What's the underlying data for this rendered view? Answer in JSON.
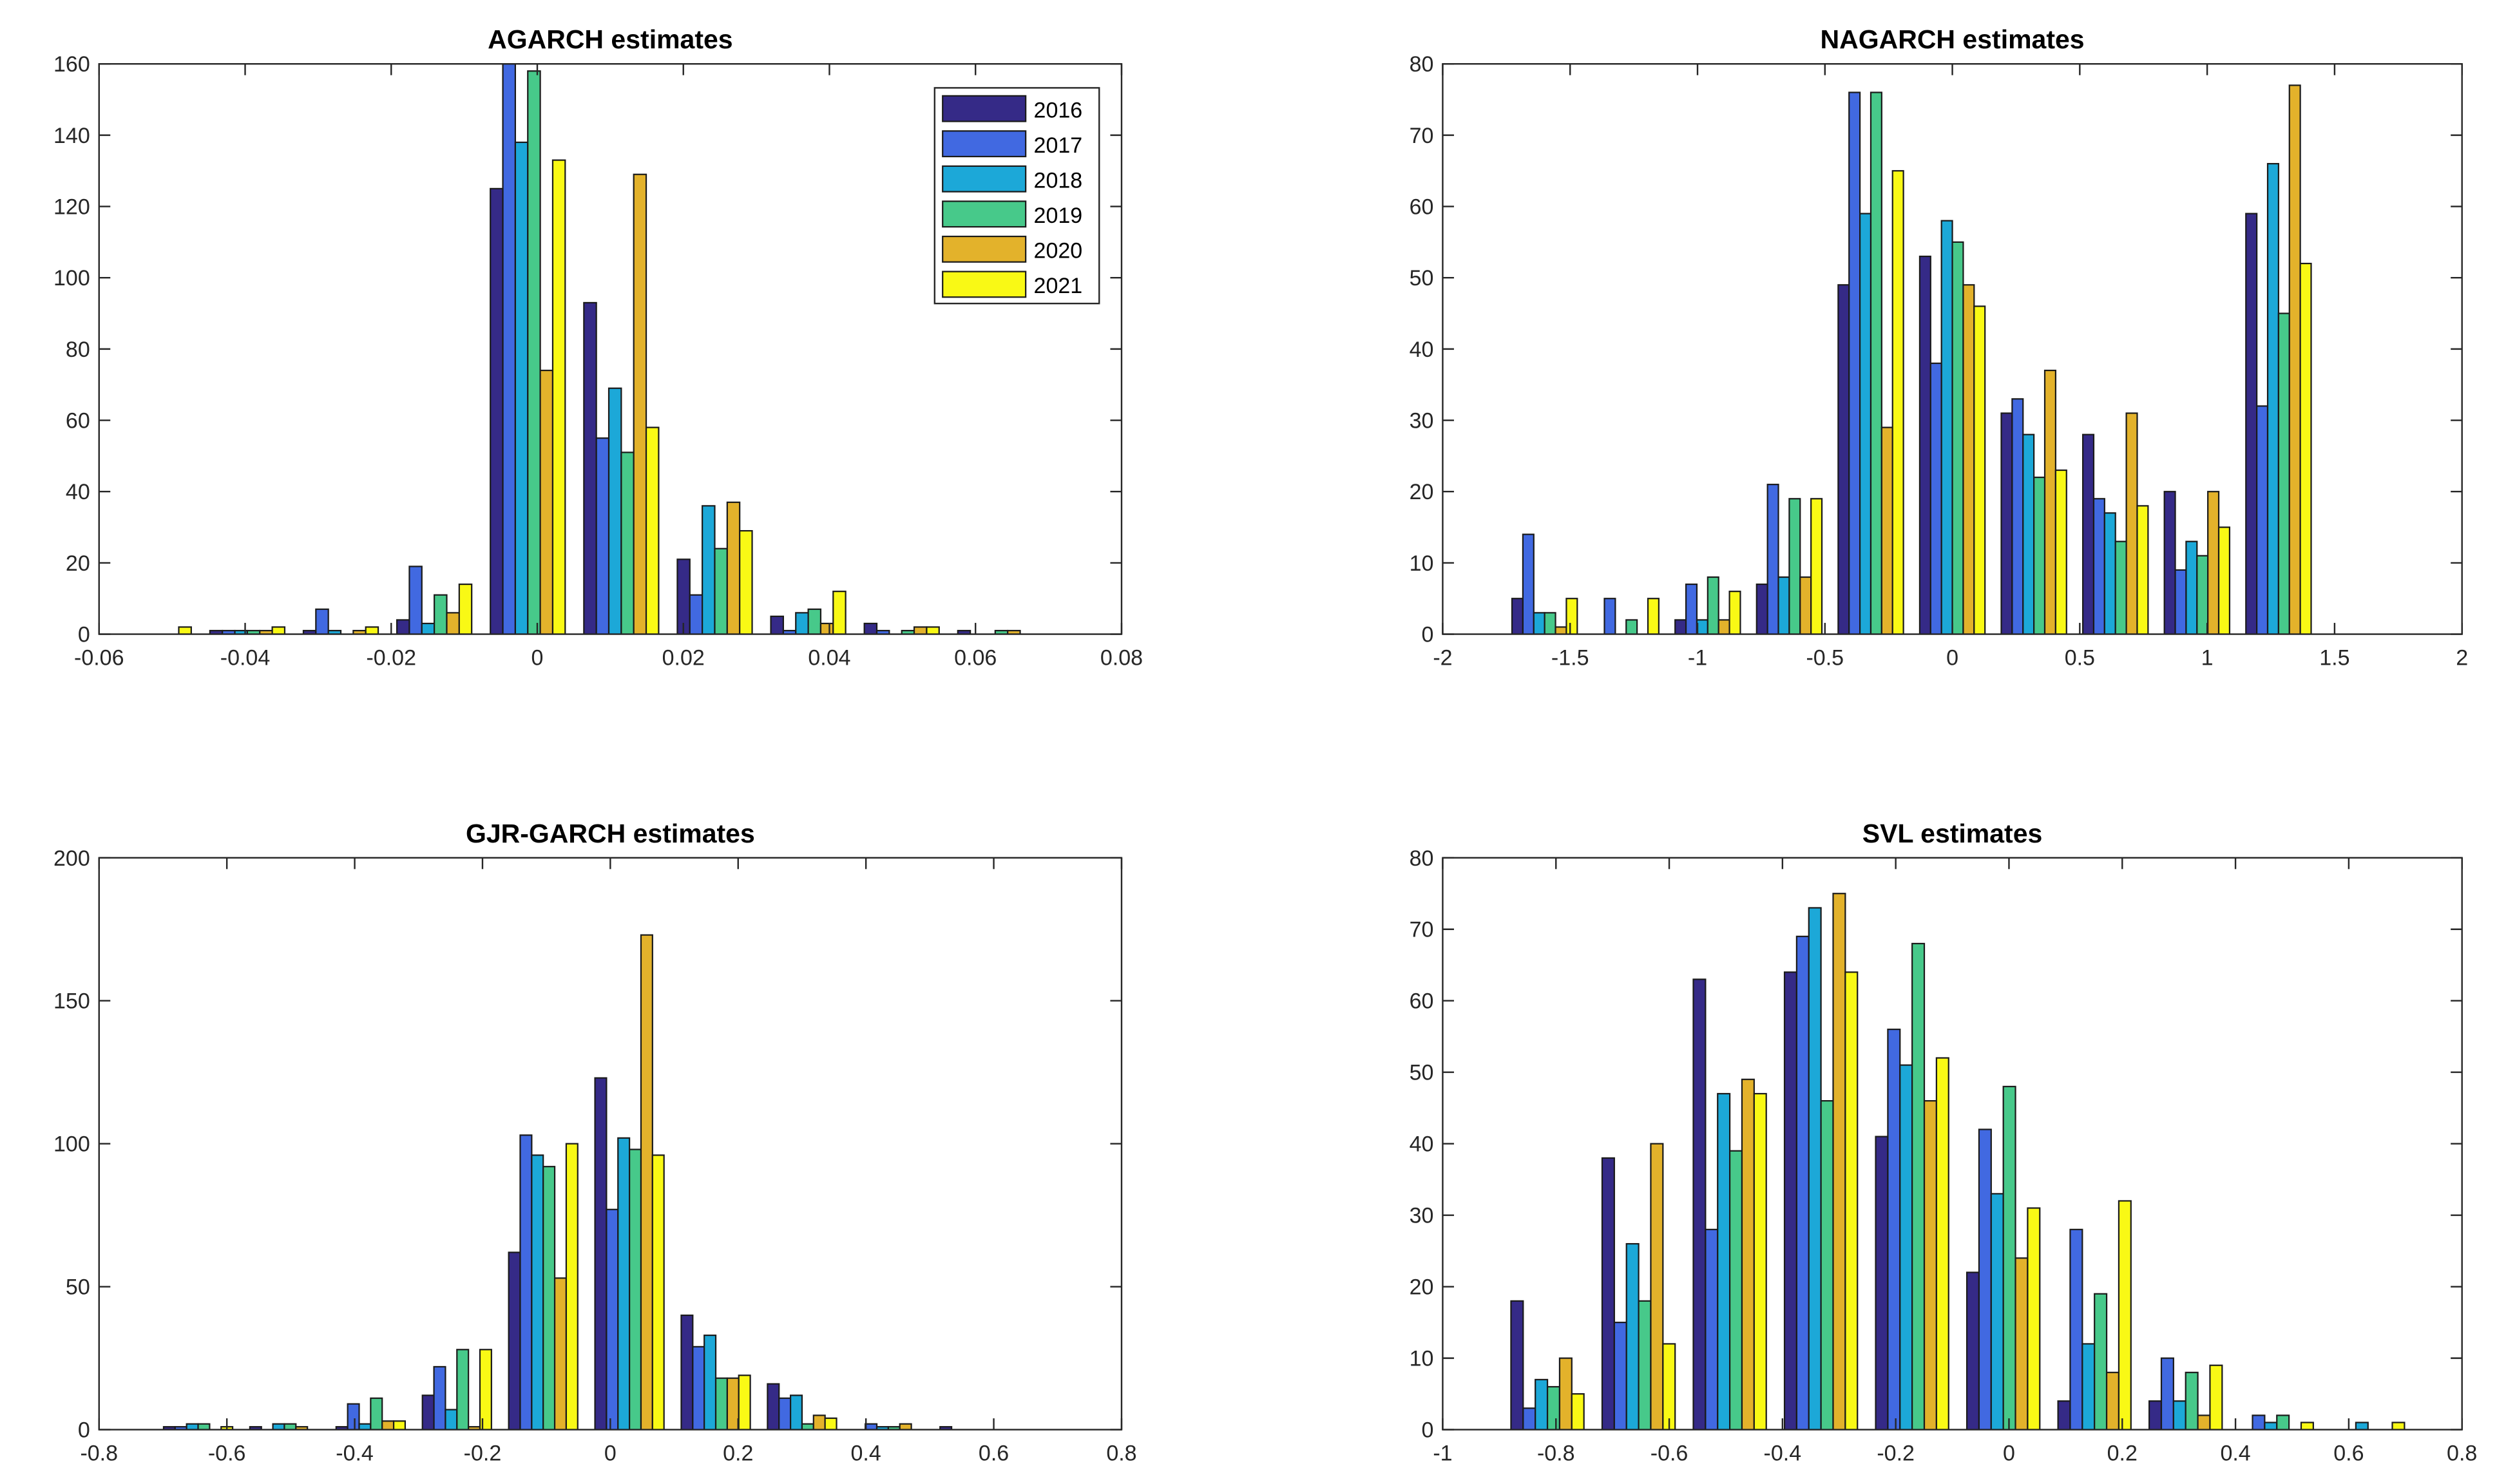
{
  "colors": {
    "2016": "#352a87",
    "2017": "#4169e1",
    "2018": "#1ca8d8",
    "2019": "#47c98a",
    "2020": "#e3b22b",
    "2021": "#f9f915"
  },
  "chart_data": [
    {
      "type": "bar",
      "title": "AGARCH estimates",
      "xlim": [
        -0.06,
        0.08
      ],
      "ylim": [
        0,
        160
      ],
      "xticks": [
        "-0.06",
        "-0.04",
        "-0.02",
        "0",
        "0.02",
        "0.04",
        "0.06",
        "0.08"
      ],
      "xtick_values": [
        -0.06,
        -0.04,
        -0.02,
        0,
        0.02,
        0.04,
        0.06,
        0.08
      ],
      "yticks": [
        "0",
        "20",
        "40",
        "60",
        "80",
        "100",
        "120",
        "140",
        "160"
      ],
      "ytick_values": [
        0,
        20,
        40,
        60,
        80,
        100,
        120,
        140,
        160
      ],
      "legend": {
        "position": "top-right",
        "entries": [
          "2016",
          "2017",
          "2018",
          "2019",
          "2020",
          "2021"
        ]
      },
      "bin_start": -0.0525,
      "bin_width": 0.0128,
      "series": [
        {
          "name": "2016",
          "values": [
            0,
            1,
            1,
            4,
            125,
            93,
            21,
            5,
            3,
            1,
            0
          ]
        },
        {
          "name": "2017",
          "values": [
            0,
            1,
            7,
            19,
            160,
            55,
            11,
            1,
            1,
            0,
            0
          ]
        },
        {
          "name": "2018",
          "values": [
            0,
            1,
            1,
            3,
            138,
            69,
            36,
            6,
            0,
            0,
            0
          ]
        },
        {
          "name": "2019",
          "values": [
            0,
            1,
            0,
            11,
            158,
            51,
            24,
            7,
            1,
            1,
            0
          ]
        },
        {
          "name": "2020",
          "values": [
            0,
            1,
            1,
            6,
            74,
            129,
            37,
            3,
            2,
            1,
            0
          ]
        },
        {
          "name": "2021",
          "values": [
            2,
            2,
            2,
            14,
            133,
            58,
            29,
            12,
            2,
            0,
            0
          ]
        }
      ]
    },
    {
      "type": "bar",
      "title": "NAGARCH estimates",
      "xlim": [
        -2,
        2
      ],
      "ylim": [
        0,
        80
      ],
      "xticks": [
        "-2",
        "-1.5",
        "-1",
        "-0.5",
        "0",
        "0.5",
        "1",
        "1.5",
        "2"
      ],
      "xtick_values": [
        -2,
        -1.5,
        -1,
        -0.5,
        0,
        0.5,
        1,
        1.5,
        2
      ],
      "yticks": [
        "0",
        "10",
        "20",
        "30",
        "40",
        "50",
        "60",
        "70",
        "80"
      ],
      "ytick_values": [
        0,
        10,
        20,
        30,
        40,
        50,
        60,
        70,
        80
      ],
      "bin_start": -1.6,
      "bin_width": 0.32,
      "series": [
        {
          "name": "2016",
          "values": [
            5,
            0,
            2,
            7,
            49,
            53,
            31,
            28,
            20,
            59
          ]
        },
        {
          "name": "2017",
          "values": [
            14,
            5,
            7,
            21,
            76,
            38,
            33,
            19,
            9,
            32
          ]
        },
        {
          "name": "2018",
          "values": [
            3,
            0,
            2,
            8,
            59,
            58,
            28,
            17,
            13,
            66
          ]
        },
        {
          "name": "2019",
          "values": [
            3,
            2,
            8,
            19,
            76,
            55,
            22,
            13,
            11,
            45
          ]
        },
        {
          "name": "2020",
          "values": [
            1,
            0,
            2,
            8,
            29,
            49,
            37,
            31,
            20,
            77
          ]
        },
        {
          "name": "2021",
          "values": [
            5,
            5,
            6,
            19,
            65,
            46,
            23,
            18,
            15,
            52
          ]
        }
      ]
    },
    {
      "type": "bar",
      "title": "GJR-GARCH estimates",
      "xlim": [
        -0.8,
        0.8
      ],
      "ylim": [
        0,
        200
      ],
      "xticks": [
        "-0.8",
        "-0.6",
        "-0.4",
        "-0.2",
        "0",
        "0.2",
        "0.4",
        "0.6",
        "0.8"
      ],
      "xtick_values": [
        -0.8,
        -0.6,
        -0.4,
        -0.2,
        0,
        0.2,
        0.4,
        0.6,
        0.8
      ],
      "yticks": [
        "0",
        "50",
        "100",
        "150",
        "200"
      ],
      "ytick_values": [
        0,
        50,
        100,
        150,
        200
      ],
      "bin_start": -0.645,
      "bin_width": 0.135,
      "series": [
        {
          "name": "2016",
          "values": [
            1,
            1,
            1,
            12,
            62,
            123,
            40,
            16,
            0,
            1
          ]
        },
        {
          "name": "2017",
          "values": [
            1,
            0,
            9,
            22,
            103,
            77,
            29,
            11,
            2,
            0
          ]
        },
        {
          "name": "2018",
          "values": [
            2,
            2,
            2,
            7,
            96,
            102,
            33,
            12,
            1,
            0
          ]
        },
        {
          "name": "2019",
          "values": [
            2,
            2,
            11,
            28,
            92,
            98,
            18,
            2,
            1,
            0
          ]
        },
        {
          "name": "2020",
          "values": [
            0,
            1,
            3,
            1,
            53,
            173,
            18,
            5,
            2,
            0
          ]
        },
        {
          "name": "2021",
          "values": [
            1,
            0,
            3,
            28,
            100,
            96,
            19,
            4,
            0,
            0
          ]
        }
      ]
    },
    {
      "type": "bar",
      "title": "SVL estimates",
      "xlim": [
        -1,
        0.8
      ],
      "ylim": [
        0,
        80
      ],
      "xticks": [
        "-1",
        "-0.8",
        "-0.6",
        "-0.4",
        "-0.2",
        "0",
        "0.2",
        "0.4",
        "0.6",
        "0.8"
      ],
      "xtick_values": [
        -1,
        -0.8,
        -0.6,
        -0.4,
        -0.2,
        0,
        0.2,
        0.4,
        0.6,
        0.8
      ],
      "yticks": [
        "0",
        "10",
        "20",
        "30",
        "40",
        "50",
        "60",
        "70",
        "80"
      ],
      "ytick_values": [
        0,
        10,
        20,
        30,
        40,
        50,
        60,
        70,
        80
      ],
      "bin_start": -0.815,
      "bin_width": 0.161,
      "series": [
        {
          "name": "2016",
          "values": [
            18,
            38,
            63,
            64,
            41,
            22,
            4,
            4,
            0,
            0
          ]
        },
        {
          "name": "2017",
          "values": [
            3,
            15,
            28,
            69,
            56,
            42,
            28,
            10,
            2,
            0
          ]
        },
        {
          "name": "2018",
          "values": [
            7,
            26,
            47,
            73,
            51,
            33,
            12,
            4,
            1,
            1
          ]
        },
        {
          "name": "2019",
          "values": [
            6,
            18,
            39,
            46,
            68,
            48,
            19,
            8,
            2,
            0
          ]
        },
        {
          "name": "2020",
          "values": [
            10,
            40,
            49,
            75,
            46,
            24,
            8,
            2,
            0,
            0
          ]
        },
        {
          "name": "2021",
          "values": [
            5,
            12,
            47,
            64,
            52,
            31,
            32,
            9,
            1,
            1
          ]
        }
      ]
    }
  ]
}
